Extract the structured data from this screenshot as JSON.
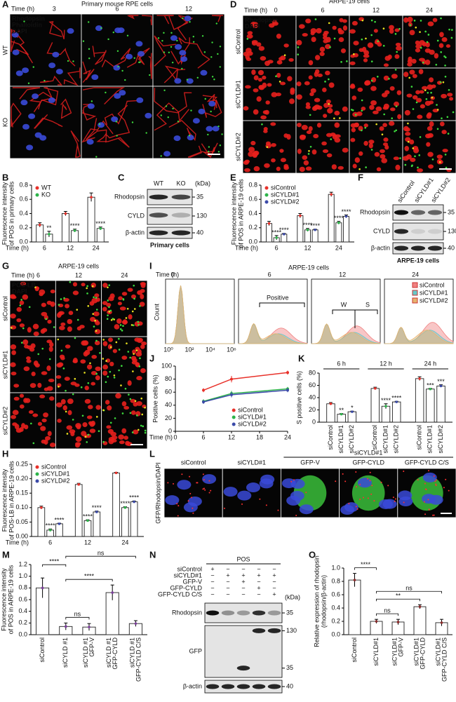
{
  "images": [
    {
      "letter": "A",
      "title": "Primary mouse RPE cells",
      "time_label": "Time (h)",
      "times": [
        3,
        6,
        12
      ],
      "rows": [
        "WT",
        "KO"
      ],
      "stains": [
        {
          "text": "Rhodopsin",
          "color": "#3ddc3d"
        },
        {
          "text": "Phalloidin",
          "color": "#ff2a2a"
        },
        {
          "text": "DAPI",
          "color": "#6a7bff"
        }
      ]
    },
    {
      "letter": "D",
      "title": "ARPE-19 cells",
      "time_label": "Time (h)",
      "times": [
        0,
        6,
        12,
        24
      ],
      "rows": [
        "siControl",
        "siCYLD#1",
        "siCYLD#2"
      ],
      "stains": [
        {
          "text": "Rhodopsin",
          "color": "#3ddc3d"
        },
        {
          "text": "DAPI",
          "color": "#ff2a2a"
        }
      ]
    },
    {
      "letter": "G",
      "title": "ARPE-19 cells",
      "time_label": "Time (h)",
      "times": [
        6,
        12,
        24
      ],
      "rows": [
        "siControl",
        "siCYLD#1",
        "siCYLD#2"
      ],
      "stains": [
        {
          "text": "POS-LB",
          "color": "#3ddc3d"
        },
        {
          "text": "DAPI",
          "color": "#ff2a2a"
        }
      ]
    },
    {
      "letter": "L",
      "columns": [
        "siControl",
        "siCYLD#1",
        "GFP-V",
        "GFP-CYLD",
        "GFP-CYLD C/S"
      ],
      "group_header": {
        "text": "siCYLD#1",
        "from": 2,
        "to": 4
      },
      "stain_label": "GFP/Rhodopsin/DAPI"
    }
  ],
  "blots": [
    {
      "letter": "C",
      "lanes": [
        "WT",
        "KO"
      ],
      "rows": [
        {
          "name": "Rhodopsin",
          "kda": [
            35
          ]
        },
        {
          "name": "CYLD",
          "kda": [
            130
          ]
        },
        {
          "name": "β-actin",
          "kda": [
            40
          ]
        }
      ],
      "kda_label": "(kDa)",
      "caption": "Primary cells"
    },
    {
      "letter": "F",
      "lanes": [
        "siControl",
        "siCYLD#1",
        "siCYLD#2"
      ],
      "rows": [
        {
          "name": "Rhodopsin",
          "kda": [
            35
          ]
        },
        {
          "name": "CYLD",
          "kda": [
            130
          ]
        },
        {
          "name": "β-actin",
          "kda": [
            40
          ]
        }
      ],
      "caption": "ARPE-19 cells"
    },
    {
      "letter": "N",
      "header": "POS",
      "conditions": [
        {
          "name": "siControl",
          "signs": [
            "+",
            "−",
            "−",
            "−",
            "−"
          ]
        },
        {
          "name": "siCYLD#1",
          "signs": [
            "−",
            "+",
            "+",
            "+",
            "+"
          ]
        },
        {
          "name": "GFP-V",
          "signs": [
            "−",
            "−",
            "+",
            "−",
            "−"
          ]
        },
        {
          "name": "GFP-CYLD",
          "signs": [
            "−",
            "−",
            "−",
            "+",
            "−"
          ]
        },
        {
          "name": "GFP-CYLD C/S",
          "signs": [
            "−",
            "−",
            "−",
            "−",
            "+"
          ]
        }
      ],
      "rows": [
        {
          "name": "Rhodopsin",
          "kda": [
            35
          ]
        },
        {
          "name": "GFP",
          "kda": [
            130,
            35
          ]
        },
        {
          "name": "β-actin",
          "kda": [
            40
          ]
        }
      ],
      "kda_label": "(kDa)"
    }
  ],
  "flow": {
    "letter": "I",
    "title": "ARPE-19 cells",
    "time_label": "Time (h)",
    "times": [
      0,
      6,
      12,
      24
    ],
    "ylabel": "Count",
    "xticks": [
      "10⁰",
      "10²",
      "10⁴",
      "10⁶"
    ],
    "gate_positive": "Positive",
    "gate_w": "W",
    "gate_s": "S",
    "series": [
      {
        "name": "siControl",
        "color": "#f08080"
      },
      {
        "name": "siCYLD#1",
        "color": "#66c8c8"
      },
      {
        "name": "siCYLD#2",
        "color": "#e6b46e"
      }
    ]
  },
  "chart_data": [
    {
      "letter": "B",
      "type": "bar",
      "ylabel": [
        "Fluorescence intensity",
        "of POS in primary cells"
      ],
      "xlabel": "Time (h)",
      "categories": [
        "6",
        "12",
        "24"
      ],
      "legend": true,
      "series": [
        {
          "name": "WT",
          "color": "#e8312a",
          "values": [
            0.24,
            0.4,
            0.63
          ],
          "errors": [
            0.03,
            0.03,
            0.06
          ]
        },
        {
          "name": "KO",
          "color": "#2db34a",
          "values": [
            0.11,
            0.16,
            0.19
          ],
          "errors": [
            0.04,
            0.02,
            0.02
          ]
        }
      ],
      "ylim": [
        0,
        0.8
      ],
      "yticks": [
        {
          "value": 0,
          "label": "0.0"
        },
        {
          "value": 0.2,
          "label": "0.2"
        },
        {
          "value": 0.4,
          "label": "0.4"
        },
        {
          "value": 0.6,
          "label": "0.6"
        },
        {
          "value": 0.8,
          "label": "0.8"
        }
      ],
      "significance": [
        {
          "text": "**",
          "category": 0,
          "series": 1
        },
        {
          "text": "****",
          "category": 1,
          "series": 1
        },
        {
          "text": "****",
          "category": 2,
          "series": 1
        }
      ]
    },
    {
      "letter": "E",
      "type": "bar",
      "ylabel": [
        "Fluorescence intensity",
        "of POS in ARPE-19 cells"
      ],
      "xlabel": "Time (h)",
      "categories": [
        "6",
        "12",
        "24"
      ],
      "legend": true,
      "series": [
        {
          "name": "siControl",
          "color": "#e8312a",
          "values": [
            0.26,
            0.37,
            0.67
          ],
          "errors": [
            0.03,
            0.03,
            0.03
          ]
        },
        {
          "name": "siCYLD#1",
          "color": "#2db34a",
          "values": [
            0.06,
            0.17,
            0.27
          ],
          "errors": [
            0.03,
            0.02,
            0.02
          ]
        },
        {
          "name": "siCYLD#2",
          "color": "#3b4aa8",
          "values": [
            0.11,
            0.17,
            0.36
          ],
          "errors": [
            0.01,
            0.01,
            0.02
          ]
        }
      ],
      "ylim": [
        0,
        0.8
      ],
      "yticks": [
        {
          "value": 0,
          "label": "0.0"
        },
        {
          "value": 0.2,
          "label": "0.2"
        },
        {
          "value": 0.4,
          "label": "0.4"
        },
        {
          "value": 0.6,
          "label": "0.6"
        },
        {
          "value": 0.8,
          "label": "0.8"
        }
      ],
      "significance": [
        {
          "text": "****",
          "category": 0,
          "series": 1
        },
        {
          "text": "****",
          "category": 0,
          "series": 2
        },
        {
          "text": "****",
          "category": 1,
          "series": 1
        },
        {
          "text": "****",
          "category": 1,
          "series": 2
        },
        {
          "text": "****",
          "category": 2,
          "series": 1
        },
        {
          "text": "****",
          "category": 2,
          "series": 2
        }
      ]
    },
    {
      "letter": "J",
      "type": "line",
      "ylabel": [
        "Positive cells (%)"
      ],
      "xlabel": "Time (h)",
      "legend": true,
      "x": [
        6,
        12,
        24
      ],
      "xlim": [
        0,
        24
      ],
      "xticks": [
        0,
        6,
        12,
        18,
        24
      ],
      "series": [
        {
          "name": "siControl",
          "color": "#e8312a",
          "values": [
            63,
            80,
            90
          ],
          "errors": [
            3,
            5,
            3
          ]
        },
        {
          "name": "siCYLD#1",
          "color": "#2db34a",
          "values": [
            46,
            58,
            65
          ],
          "errors": [
            3,
            4,
            3
          ]
        },
        {
          "name": "siCYLD#2",
          "color": "#3b4aa8",
          "values": [
            45,
            56,
            63
          ],
          "errors": [
            3,
            4,
            3
          ]
        }
      ],
      "ylim": [
        0,
        100
      ],
      "yticks": [
        0,
        20,
        40,
        60,
        80,
        100
      ]
    },
    {
      "letter": "K",
      "type": "bar",
      "ylabel": [
        "S positive cells (%)"
      ],
      "bar_labels": true,
      "categories": [
        "6 h",
        "12 h",
        "24 h"
      ],
      "series": [
        {
          "name": "siControl",
          "color": "#e8312a",
          "values": [
            30,
            55,
            71
          ],
          "errors": [
            2,
            2,
            3
          ]
        },
        {
          "name": "siCYLD#1",
          "color": "#2db34a",
          "values": [
            13,
            26,
            54
          ],
          "errors": [
            1,
            4,
            1
          ]
        },
        {
          "name": "siCYLD#2",
          "color": "#3b4aa8",
          "values": [
            17,
            33,
            59
          ],
          "errors": [
            1,
            1,
            2
          ]
        }
      ],
      "ylim": [
        0,
        80
      ],
      "yticks": [
        0,
        20,
        40,
        60,
        80
      ],
      "significance": [
        {
          "text": "**",
          "category": 0,
          "series": 1
        },
        {
          "text": "*",
          "category": 0,
          "series": 2
        },
        {
          "text": "****",
          "category": 1,
          "series": 1
        },
        {
          "text": "****",
          "category": 1,
          "series": 2
        },
        {
          "text": "***",
          "category": 2,
          "series": 1
        },
        {
          "text": "***",
          "category": 2,
          "series": 2
        }
      ]
    },
    {
      "letter": "H",
      "type": "bar",
      "ylabel": [
        "Fluorescence intensity",
        "of POS-LB in ARPE-19 cells"
      ],
      "xlabel": "Time (h)",
      "categories": [
        "6",
        "12",
        "24"
      ],
      "legend": true,
      "series": [
        {
          "name": "siControl",
          "color": "#e8312a",
          "values": [
            0.1,
            0.18,
            0.22
          ],
          "errors": [
            0.005,
            0.004,
            0.002
          ]
        },
        {
          "name": "siCYLD#1",
          "color": "#2db34a",
          "values": [
            0.022,
            0.055,
            0.1
          ],
          "errors": [
            0.004,
            0.003,
            0.003
          ]
        },
        {
          "name": "siCYLD#2",
          "color": "#3b4aa8",
          "values": [
            0.044,
            0.085,
            0.12
          ],
          "errors": [
            0.002,
            0.003,
            0.003
          ]
        }
      ],
      "ylim": [
        0,
        0.25
      ],
      "yticks": [
        {
          "value": 0,
          "label": "0.00"
        },
        {
          "value": 0.05,
          "label": "0.05"
        },
        {
          "value": 0.1,
          "label": "0.10"
        },
        {
          "value": 0.15,
          "label": "0.15"
        },
        {
          "value": 0.2,
          "label": "0.20"
        },
        {
          "value": 0.25,
          "label": "0.25"
        }
      ],
      "significance": [
        {
          "text": "****",
          "category": 0,
          "series": 1
        },
        {
          "text": "****",
          "category": 0,
          "series": 2
        },
        {
          "text": "****",
          "category": 1,
          "series": 1
        },
        {
          "text": "****",
          "category": 1,
          "series": 2
        },
        {
          "text": "****",
          "category": 2,
          "series": 1
        },
        {
          "text": "****",
          "category": 2,
          "series": 2
        }
      ]
    },
    {
      "letter": "M",
      "type": "bar",
      "ylabel": [
        "Fluorescence intensity",
        "of POS in ARPE-19 cells"
      ],
      "categories": [
        [
          "siControl"
        ],
        [
          "siCYLD #1"
        ],
        [
          "siCYLD #1",
          "GFP-V"
        ],
        [
          "siCYLD #1",
          "GFP-CYLD"
        ],
        [
          "siCYLD #1",
          "GFP-CYLD C/S"
        ]
      ],
      "series": [
        {
          "color": "#7a3d9a",
          "values": [
            0.8,
            0.14,
            0.13,
            0.72,
            0.19
          ],
          "errors": [
            0.17,
            0.06,
            0.06,
            0.13,
            0.05
          ]
        }
      ],
      "ylim": [
        0,
        1.2
      ],
      "yticks": [
        {
          "value": 0,
          "label": "0.0"
        },
        {
          "value": 0.2,
          "label": "0.2"
        },
        {
          "value": 0.4,
          "label": "0.4"
        },
        {
          "value": 0.6,
          "label": "0.6"
        },
        {
          "value": 0.8,
          "label": "0.8"
        },
        {
          "value": 1,
          "label": "1.0"
        },
        {
          "value": 1.2,
          "label": "1.2"
        }
      ],
      "significance": [
        {
          "text": "ns",
          "pair": [
            1,
            2
          ]
        },
        {
          "text": "****",
          "pair": [
            1,
            3
          ]
        },
        {
          "text": "****",
          "pair": [
            0,
            1
          ]
        },
        {
          "text": "ns",
          "pair": [
            1,
            4
          ]
        }
      ]
    },
    {
      "letter": "O",
      "type": "bar",
      "ylabel": [
        "Relative expression of rhodopsin",
        "(rhodopsin/β-actin)"
      ],
      "categories": [
        [
          "siControl"
        ],
        [
          "siCYLD#1"
        ],
        [
          "siCYLD#1",
          "GFP-V"
        ],
        [
          "siCYLD#1",
          "GFP-CYLD"
        ],
        [
          "siCYLD#1",
          "GFP-CYLD C/S"
        ]
      ],
      "series": [
        {
          "color": "#8b2a2a",
          "values": [
            0.82,
            0.2,
            0.19,
            0.42,
            0.18
          ],
          "errors": [
            0.1,
            0.03,
            0.04,
            0.03,
            0.05
          ]
        }
      ],
      "ylim": [
        0,
        1.0
      ],
      "yticks": [
        {
          "value": 0,
          "label": "0.0"
        },
        {
          "value": 0.2,
          "label": "0.2"
        },
        {
          "value": 0.4,
          "label": "0.4"
        },
        {
          "value": 0.6,
          "label": "0.6"
        },
        {
          "value": 0.8,
          "label": "0.8"
        },
        {
          "value": 1,
          "label": "1.0"
        }
      ],
      "significance": [
        {
          "text": "ns",
          "pair": [
            1,
            2
          ]
        },
        {
          "text": "**",
          "pair": [
            1,
            3
          ]
        },
        {
          "text": "ns",
          "pair": [
            1,
            4
          ]
        },
        {
          "text": "****",
          "pair": [
            0,
            1
          ]
        }
      ]
    }
  ]
}
